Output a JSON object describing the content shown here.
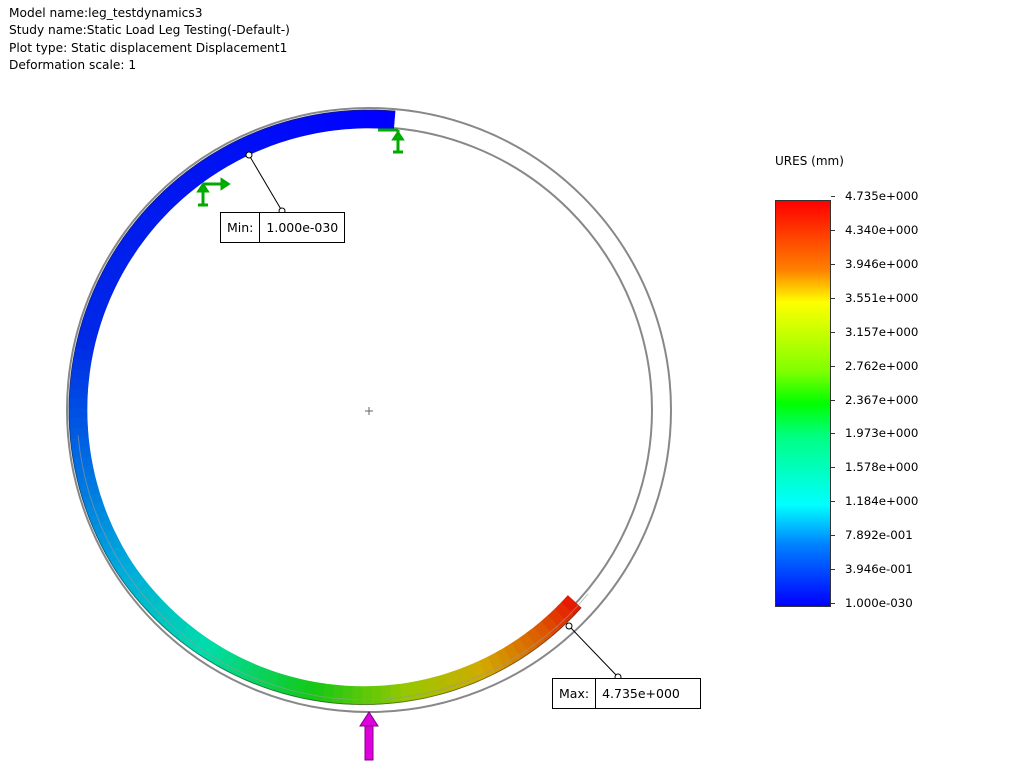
{
  "header": {
    "model_name": "Model name:leg_testdynamics3",
    "study_name": "Study name:Static Load Leg Testing(-Default-)",
    "plot_type": "Plot type: Static displacement Displacement1",
    "deformation_scale": "Deformation scale: 1"
  },
  "min_callout": {
    "label": "Min:",
    "value": "1.000e-030"
  },
  "max_callout": {
    "label": "Max:",
    "value": "4.735e+000"
  },
  "legend": {
    "title": "URES (mm)",
    "ticks": [
      "4.735e+000",
      "4.340e+000",
      "3.946e+000",
      "3.551e+000",
      "3.157e+000",
      "2.762e+000",
      "2.367e+000",
      "1.973e+000",
      "1.578e+000",
      "1.184e+000",
      "7.892e-001",
      "3.946e-001",
      "1.000e-030"
    ],
    "colors": {
      "max": "#ff0000",
      "mid": "#00ff00",
      "min": "#0000ff"
    }
  },
  "icons": {
    "fixture": "fixture-arrow-icon",
    "load": "force-arrow-icon",
    "origin": "origin-plus-icon"
  }
}
